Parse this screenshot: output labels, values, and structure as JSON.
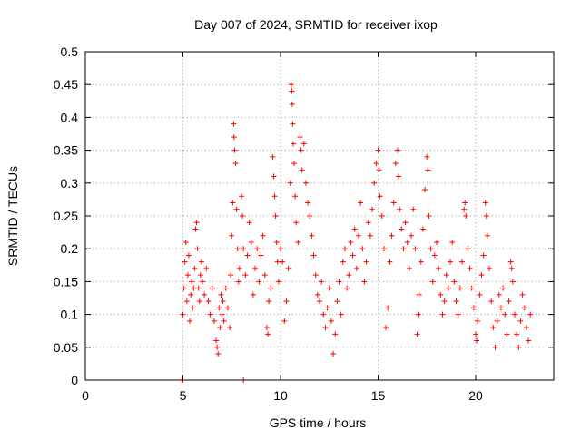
{
  "chart_data": {
    "type": "scatter",
    "title": "Day 007 of 2024, SRMTID for receiver ixop",
    "xlabel": "GPS time / hours",
    "ylabel": "SRMTID / TECUs",
    "xlim": [
      0,
      24
    ],
    "ylim": [
      0,
      0.5
    ],
    "xticks": [
      0,
      5,
      10,
      15,
      20
    ],
    "xtick_labels": [
      "0",
      "5",
      "10",
      "15",
      "20"
    ],
    "yticks": [
      0,
      0.05,
      0.1,
      0.15,
      0.2,
      0.25,
      0.3,
      0.35,
      0.4,
      0.45,
      0.5
    ],
    "ytick_labels": [
      "0",
      "0.05",
      "0.1",
      "0.15",
      "0.2",
      "0.25",
      "0.3",
      "0.35",
      "0.4",
      "0.45",
      "0.5"
    ],
    "grid": true,
    "legend": "none",
    "marker": "+",
    "series": [
      {
        "color": "#ff0000",
        "points": [
          [
            4.95,
            0.0
          ],
          [
            4.98,
            0.0
          ],
          [
            5.0,
            0.0
          ],
          [
            8.1,
            0.0
          ],
          [
            5.0,
            0.1
          ],
          [
            5.05,
            0.14
          ],
          [
            5.1,
            0.18
          ],
          [
            5.15,
            0.21
          ],
          [
            5.2,
            0.12
          ],
          [
            5.25,
            0.16
          ],
          [
            5.3,
            0.19
          ],
          [
            5.35,
            0.09
          ],
          [
            5.4,
            0.13
          ],
          [
            5.45,
            0.15
          ],
          [
            5.5,
            0.11
          ],
          [
            5.55,
            0.14
          ],
          [
            5.6,
            0.17
          ],
          [
            5.65,
            0.23
          ],
          [
            5.7,
            0.24
          ],
          [
            5.75,
            0.2
          ],
          [
            5.8,
            0.14
          ],
          [
            5.85,
            0.12
          ],
          [
            5.9,
            0.16
          ],
          [
            5.95,
            0.18
          ],
          [
            6.0,
            0.15
          ],
          [
            6.1,
            0.13
          ],
          [
            6.2,
            0.17
          ],
          [
            6.3,
            0.12
          ],
          [
            6.4,
            0.1
          ],
          [
            6.5,
            0.14
          ],
          [
            6.6,
            0.09
          ],
          [
            6.7,
            0.06
          ],
          [
            6.75,
            0.05
          ],
          [
            6.8,
            0.04
          ],
          [
            6.85,
            0.11
          ],
          [
            6.9,
            0.08
          ],
          [
            6.95,
            0.13
          ],
          [
            7.0,
            0.1
          ],
          [
            7.05,
            0.12
          ],
          [
            7.1,
            0.09
          ],
          [
            7.2,
            0.14
          ],
          [
            7.3,
            0.11
          ],
          [
            7.4,
            0.08
          ],
          [
            7.45,
            0.16
          ],
          [
            7.5,
            0.22
          ],
          [
            7.55,
            0.27
          ],
          [
            7.6,
            0.39
          ],
          [
            7.62,
            0.37
          ],
          [
            7.65,
            0.35
          ],
          [
            7.7,
            0.33
          ],
          [
            7.75,
            0.26
          ],
          [
            7.8,
            0.2
          ],
          [
            7.85,
            0.15
          ],
          [
            7.9,
            0.17
          ],
          [
            8.0,
            0.28
          ],
          [
            8.05,
            0.25
          ],
          [
            8.1,
            0.2
          ],
          [
            8.2,
            0.16
          ],
          [
            8.3,
            0.19
          ],
          [
            8.4,
            0.24
          ],
          [
            8.5,
            0.21
          ],
          [
            8.6,
            0.13
          ],
          [
            8.7,
            0.17
          ],
          [
            8.8,
            0.2
          ],
          [
            8.9,
            0.15
          ],
          [
            9.0,
            0.19
          ],
          [
            9.1,
            0.22
          ],
          [
            9.2,
            0.16
          ],
          [
            9.3,
            0.08
          ],
          [
            9.35,
            0.07
          ],
          [
            9.4,
            0.12
          ],
          [
            9.5,
            0.14
          ],
          [
            9.6,
            0.34
          ],
          [
            9.65,
            0.31
          ],
          [
            9.7,
            0.28
          ],
          [
            9.75,
            0.25
          ],
          [
            9.8,
            0.21
          ],
          [
            9.85,
            0.18
          ],
          [
            9.9,
            0.15
          ],
          [
            10.0,
            0.2
          ],
          [
            10.1,
            0.18
          ],
          [
            10.2,
            0.09
          ],
          [
            10.3,
            0.12
          ],
          [
            10.4,
            0.17
          ],
          [
            10.5,
            0.3
          ],
          [
            10.55,
            0.45
          ],
          [
            10.58,
            0.44
          ],
          [
            10.6,
            0.42
          ],
          [
            10.62,
            0.39
          ],
          [
            10.65,
            0.36
          ],
          [
            10.7,
            0.33
          ],
          [
            10.75,
            0.28
          ],
          [
            10.8,
            0.24
          ],
          [
            10.9,
            0.21
          ],
          [
            11.0,
            0.37
          ],
          [
            11.05,
            0.35
          ],
          [
            11.1,
            0.32
          ],
          [
            11.2,
            0.36
          ],
          [
            11.3,
            0.3
          ],
          [
            11.4,
            0.27
          ],
          [
            11.5,
            0.25
          ],
          [
            11.6,
            0.22
          ],
          [
            11.7,
            0.19
          ],
          [
            11.8,
            0.16
          ],
          [
            11.9,
            0.13
          ],
          [
            12.0,
            0.12
          ],
          [
            12.1,
            0.15
          ],
          [
            12.2,
            0.1
          ],
          [
            12.3,
            0.08
          ],
          [
            12.4,
            0.11
          ],
          [
            12.5,
            0.14
          ],
          [
            12.6,
            0.09
          ],
          [
            12.7,
            0.04
          ],
          [
            12.8,
            0.07
          ],
          [
            12.9,
            0.12
          ],
          [
            13.0,
            0.15
          ],
          [
            13.1,
            0.1
          ],
          [
            13.2,
            0.18
          ],
          [
            13.3,
            0.2
          ],
          [
            13.4,
            0.14
          ],
          [
            13.5,
            0.16
          ],
          [
            13.6,
            0.21
          ],
          [
            13.7,
            0.19
          ],
          [
            13.8,
            0.23
          ],
          [
            13.9,
            0.17
          ],
          [
            14.0,
            0.22
          ],
          [
            14.1,
            0.27
          ],
          [
            14.2,
            0.2
          ],
          [
            14.3,
            0.15
          ],
          [
            14.4,
            0.18
          ],
          [
            14.5,
            0.24
          ],
          [
            14.6,
            0.22
          ],
          [
            14.7,
            0.26
          ],
          [
            14.8,
            0.3
          ],
          [
            14.9,
            0.33
          ],
          [
            15.0,
            0.35
          ],
          [
            15.05,
            0.32
          ],
          [
            15.1,
            0.28
          ],
          [
            15.2,
            0.25
          ],
          [
            15.3,
            0.2
          ],
          [
            15.4,
            0.08
          ],
          [
            15.5,
            0.11
          ],
          [
            15.6,
            0.18
          ],
          [
            15.7,
            0.22
          ],
          [
            15.8,
            0.27
          ],
          [
            15.9,
            0.33
          ],
          [
            16.0,
            0.35
          ],
          [
            16.05,
            0.31
          ],
          [
            16.1,
            0.26
          ],
          [
            16.2,
            0.23
          ],
          [
            16.3,
            0.2
          ],
          [
            16.4,
            0.24
          ],
          [
            16.5,
            0.21
          ],
          [
            16.6,
            0.17
          ],
          [
            16.7,
            0.22
          ],
          [
            16.8,
            0.26
          ],
          [
            16.9,
            0.2
          ],
          [
            17.0,
            0.07
          ],
          [
            17.05,
            0.1
          ],
          [
            17.1,
            0.13
          ],
          [
            17.2,
            0.18
          ],
          [
            17.3,
            0.23
          ],
          [
            17.4,
            0.29
          ],
          [
            17.5,
            0.34
          ],
          [
            17.55,
            0.32
          ],
          [
            17.6,
            0.25
          ],
          [
            17.7,
            0.2
          ],
          [
            17.8,
            0.15
          ],
          [
            17.9,
            0.19
          ],
          [
            18.0,
            0.21
          ],
          [
            18.1,
            0.17
          ],
          [
            18.2,
            0.13
          ],
          [
            18.3,
            0.1
          ],
          [
            18.4,
            0.12
          ],
          [
            18.5,
            0.16
          ],
          [
            18.6,
            0.14
          ],
          [
            18.7,
            0.18
          ],
          [
            18.8,
            0.21
          ],
          [
            18.9,
            0.15
          ],
          [
            19.0,
            0.12
          ],
          [
            19.1,
            0.1
          ],
          [
            19.2,
            0.14
          ],
          [
            19.3,
            0.18
          ],
          [
            19.4,
            0.26
          ],
          [
            19.45,
            0.27
          ],
          [
            19.5,
            0.25
          ],
          [
            19.6,
            0.2
          ],
          [
            19.7,
            0.17
          ],
          [
            19.8,
            0.14
          ],
          [
            19.9,
            0.11
          ],
          [
            20.0,
            0.07
          ],
          [
            20.05,
            0.06
          ],
          [
            20.1,
            0.09
          ],
          [
            20.2,
            0.13
          ],
          [
            20.3,
            0.16
          ],
          [
            20.4,
            0.19
          ],
          [
            20.5,
            0.27
          ],
          [
            20.55,
            0.25
          ],
          [
            20.6,
            0.22
          ],
          [
            20.7,
            0.17
          ],
          [
            20.8,
            0.12
          ],
          [
            20.9,
            0.08
          ],
          [
            21.0,
            0.05
          ],
          [
            21.1,
            0.09
          ],
          [
            21.2,
            0.13
          ],
          [
            21.3,
            0.11
          ],
          [
            21.4,
            0.14
          ],
          [
            21.5,
            0.1
          ],
          [
            21.6,
            0.07
          ],
          [
            21.7,
            0.12
          ],
          [
            21.8,
            0.18
          ],
          [
            21.85,
            0.17
          ],
          [
            21.9,
            0.15
          ],
          [
            22.0,
            0.1
          ],
          [
            22.1,
            0.07
          ],
          [
            22.2,
            0.05
          ],
          [
            22.3,
            0.09
          ],
          [
            22.4,
            0.13
          ],
          [
            22.5,
            0.11
          ],
          [
            22.6,
            0.08
          ],
          [
            22.7,
            0.06
          ],
          [
            22.8,
            0.1
          ]
        ]
      }
    ]
  }
}
